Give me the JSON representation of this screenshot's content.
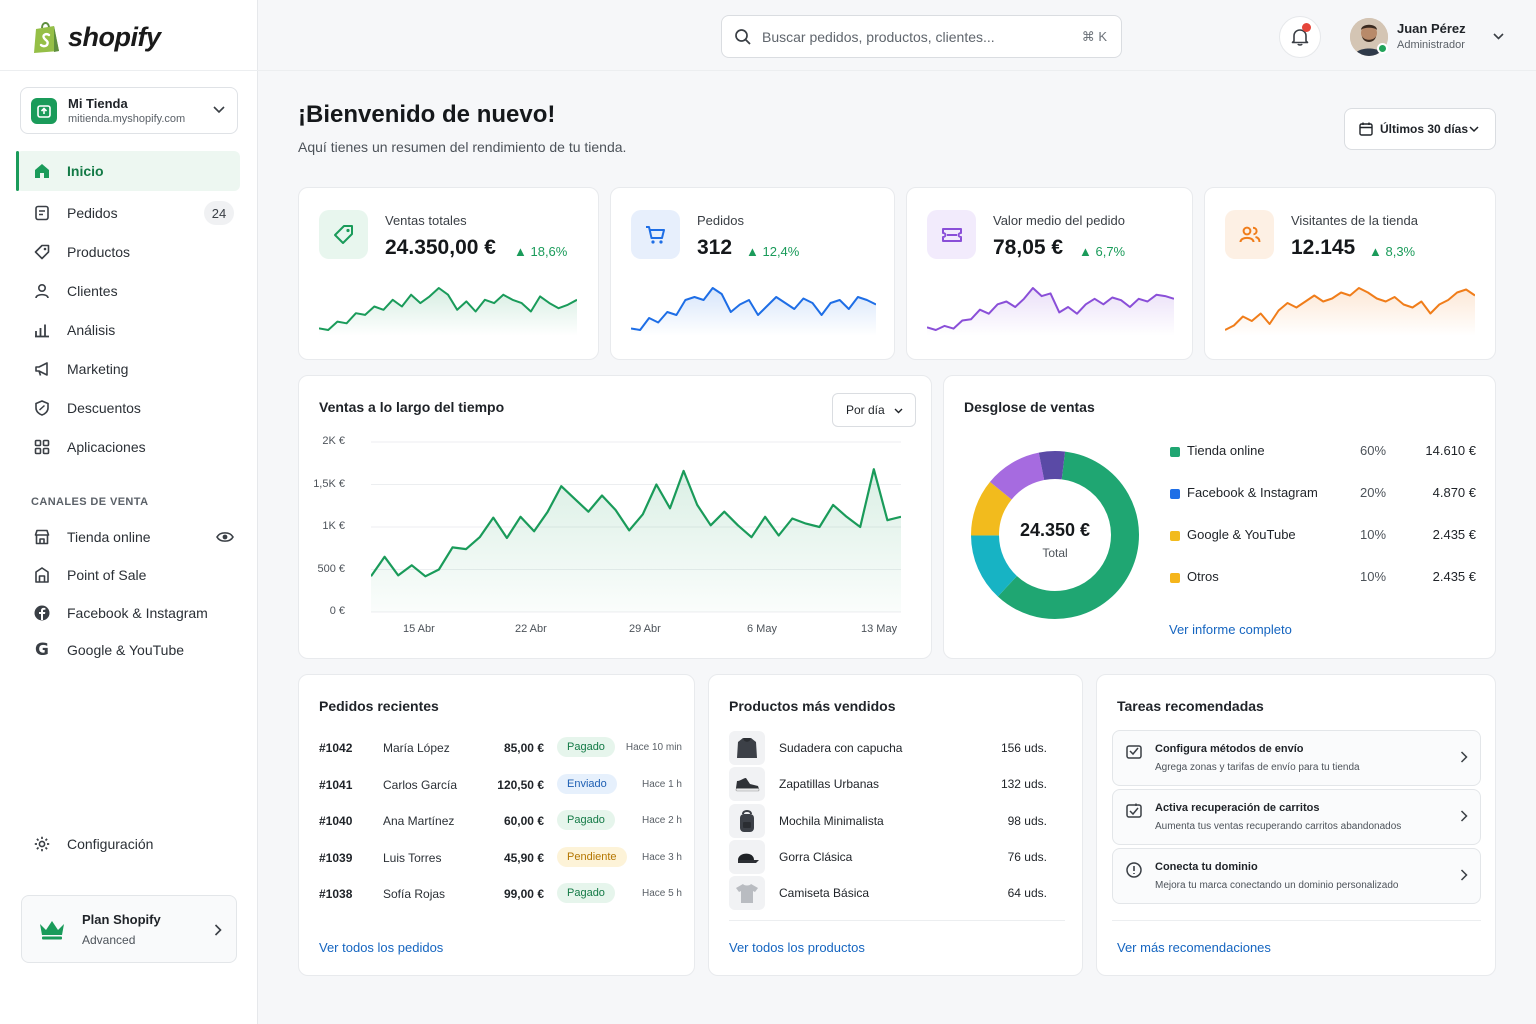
{
  "brand": {
    "name": "shopify"
  },
  "store": {
    "name": "Mi Tienda",
    "url": "mitienda.myshopify.com"
  },
  "nav": [
    {
      "label": "Inicio",
      "icon": "home-icon",
      "active": true
    },
    {
      "label": "Pedidos",
      "icon": "orders-icon",
      "badge": "24"
    },
    {
      "label": "Productos",
      "icon": "tag-icon"
    },
    {
      "label": "Clientes",
      "icon": "user-icon"
    },
    {
      "label": "Análisis",
      "icon": "bar-chart-icon"
    },
    {
      "label": "Marketing",
      "icon": "megaphone-icon"
    },
    {
      "label": "Descuentos",
      "icon": "discount-icon"
    },
    {
      "label": "Aplicaciones",
      "icon": "apps-icon"
    }
  ],
  "channels": {
    "title": "CANALES DE VENTA",
    "items": [
      {
        "label": "Tienda online",
        "icon": "storefront-icon"
      },
      {
        "label": "Point of Sale",
        "icon": "pos-icon"
      },
      {
        "label": "Facebook & Instagram",
        "icon": "facebook-icon"
      },
      {
        "label": "Google & YouTube",
        "icon": "google-icon"
      }
    ]
  },
  "settings": {
    "label": "Configuración"
  },
  "plan": {
    "title": "Plan Shopify",
    "tier": "Advanced"
  },
  "search": {
    "placeholder": "Buscar pedidos, productos, clientes...",
    "shortcut": "⌘ K"
  },
  "user": {
    "name": "Juan Pérez",
    "role": "Administrador"
  },
  "header": {
    "title": "¡Bienvenido de nuevo!",
    "subtitle": "Aquí tienes un resumen del rendimiento de tu tienda.",
    "range": "Últimos 30 días"
  },
  "colors": {
    "accent": "#1a9b5a",
    "blue": "#1e6ee6",
    "purple": "#8a4fd8",
    "orange": "#f07d1a",
    "link": "#1565c0"
  },
  "stats": [
    {
      "label": "Ventas totales",
      "value": "24.350,00 €",
      "delta": "18,6%",
      "icon": "tag-icon",
      "color": "#1a9b5a",
      "spark": [
        5,
        4,
        9,
        8,
        14,
        13,
        18,
        16,
        22,
        18,
        25,
        20,
        24,
        29,
        25,
        16,
        21,
        15,
        22,
        20,
        25,
        22,
        20,
        15,
        24,
        20,
        17,
        19,
        22
      ]
    },
    {
      "label": "Pedidos",
      "value": "312",
      "delta": "12,4%",
      "icon": "cart-icon",
      "color": "#1e6ee6",
      "spark": [
        5,
        4,
        12,
        9,
        16,
        14,
        24,
        26,
        24,
        32,
        28,
        16,
        21,
        24,
        14,
        20,
        26,
        22,
        18,
        25,
        22,
        14,
        22,
        24,
        18,
        26,
        24,
        21
      ]
    },
    {
      "label": "Valor medio del pedido",
      "value": "78,05 €",
      "delta": "6,7%",
      "icon": "ticket-icon",
      "color": "#8a4fd8",
      "spark": [
        5,
        3,
        6,
        4,
        10,
        11,
        18,
        15,
        22,
        24,
        20,
        26,
        34,
        28,
        30,
        16,
        20,
        15,
        22,
        26,
        22,
        27,
        25,
        20,
        26,
        24,
        29,
        28,
        26
      ]
    },
    {
      "label": "Visitantes de la tienda",
      "value": "12.145",
      "delta": "8,3%",
      "icon": "users-icon",
      "color": "#f07d1a",
      "spark": [
        5,
        8,
        14,
        11,
        16,
        9,
        18,
        23,
        20,
        24,
        28,
        24,
        26,
        30,
        28,
        33,
        30,
        26,
        24,
        27,
        22,
        20,
        24,
        16,
        22,
        25,
        30,
        32,
        28
      ]
    }
  ],
  "sales_chart": {
    "title": "Ventas a lo largo del tiempo",
    "granularity": "Por día"
  },
  "chart_data": {
    "type": "area",
    "title": "Ventas a lo largo del tiempo",
    "yticks": [
      "2K €",
      "1,5K €",
      "1K €",
      "500 €",
      "0 €"
    ],
    "ylim": [
      0,
      2000
    ],
    "xticks": [
      "15 Abr",
      "22 Abr",
      "29 Abr",
      "6 May",
      "13 May"
    ],
    "values": [
      420,
      650,
      430,
      550,
      420,
      500,
      760,
      740,
      880,
      1110,
      870,
      1120,
      950,
      1180,
      1480,
      1330,
      1180,
      1370,
      1200,
      960,
      1150,
      1500,
      1220,
      1660,
      1260,
      1020,
      1180,
      1020,
      880,
      1120,
      900,
      1100,
      1040,
      1000,
      1260,
      1120,
      1000,
      1680,
      1080,
      1120
    ],
    "grid": true
  },
  "breakdown": {
    "title": "Desglose de ventas",
    "total": "24.350 €",
    "total_label": "Total",
    "items": [
      {
        "name": "Tienda online",
        "pct": "60%",
        "amount": "14.610 €",
        "color": "#1fa672",
        "value": 60
      },
      {
        "name": "Facebook & Instagram",
        "pct": "20%",
        "amount": "4.870 €",
        "color": "#1e6ee6",
        "value": 20
      },
      {
        "name": "Google & YouTube",
        "pct": "10%",
        "amount": "2.435 €",
        "color": "#f2bb1d",
        "value": 10
      },
      {
        "name": "Otros",
        "pct": "10%",
        "amount": "2.435 €",
        "color": "#f5b51b",
        "value": 10
      }
    ],
    "link": "Ver informe completo"
  },
  "orders": {
    "title": "Pedidos recientes",
    "rows": [
      {
        "id": "#1042",
        "name": "María López",
        "amount": "85,00 €",
        "status": "Pagado",
        "kind": "pagado",
        "time": "Hace 10 min"
      },
      {
        "id": "#1041",
        "name": "Carlos García",
        "amount": "120,50 €",
        "status": "Enviado",
        "kind": "enviado",
        "time": "Hace 1 h"
      },
      {
        "id": "#1040",
        "name": "Ana Martínez",
        "amount": "60,00 €",
        "status": "Pagado",
        "kind": "pagado",
        "time": "Hace 2 h"
      },
      {
        "id": "#1039",
        "name": "Luis Torres",
        "amount": "45,90 €",
        "status": "Pendiente",
        "kind": "pendiente",
        "time": "Hace 3 h"
      },
      {
        "id": "#1038",
        "name": "Sofía Rojas",
        "amount": "99,00 €",
        "status": "Pagado",
        "kind": "pagado",
        "time": "Hace 5 h"
      }
    ],
    "link": "Ver todos los pedidos"
  },
  "products": {
    "title": "Productos más vendidos",
    "rows": [
      {
        "name": "Sudadera con capucha",
        "qty": "156 uds.",
        "icon": "hoodie-icon"
      },
      {
        "name": "Zapatillas Urbanas",
        "qty": "132 uds.",
        "icon": "sneaker-icon"
      },
      {
        "name": "Mochila Minimalista",
        "qty": "98 uds.",
        "icon": "backpack-icon"
      },
      {
        "name": "Gorra Clásica",
        "qty": "76 uds.",
        "icon": "cap-icon"
      },
      {
        "name": "Camiseta Básica",
        "qty": "64 uds.",
        "icon": "tshirt-icon"
      }
    ],
    "link": "Ver todos los productos"
  },
  "tasks": {
    "title": "Tareas recomendadas",
    "items": [
      {
        "title": "Configura métodos de envío",
        "desc": "Agrega zonas y tarifas de envío para tu tienda",
        "icon": "shipping-icon"
      },
      {
        "title": "Activa recuperación de carritos",
        "desc": "Aumenta tus ventas recuperando carritos abandonados",
        "icon": "cart-check-icon"
      },
      {
        "title": "Conecta tu dominio",
        "desc": "Mejora tu marca conectando un dominio personalizado",
        "icon": "domain-icon"
      }
    ],
    "link": "Ver más recomendaciones"
  }
}
